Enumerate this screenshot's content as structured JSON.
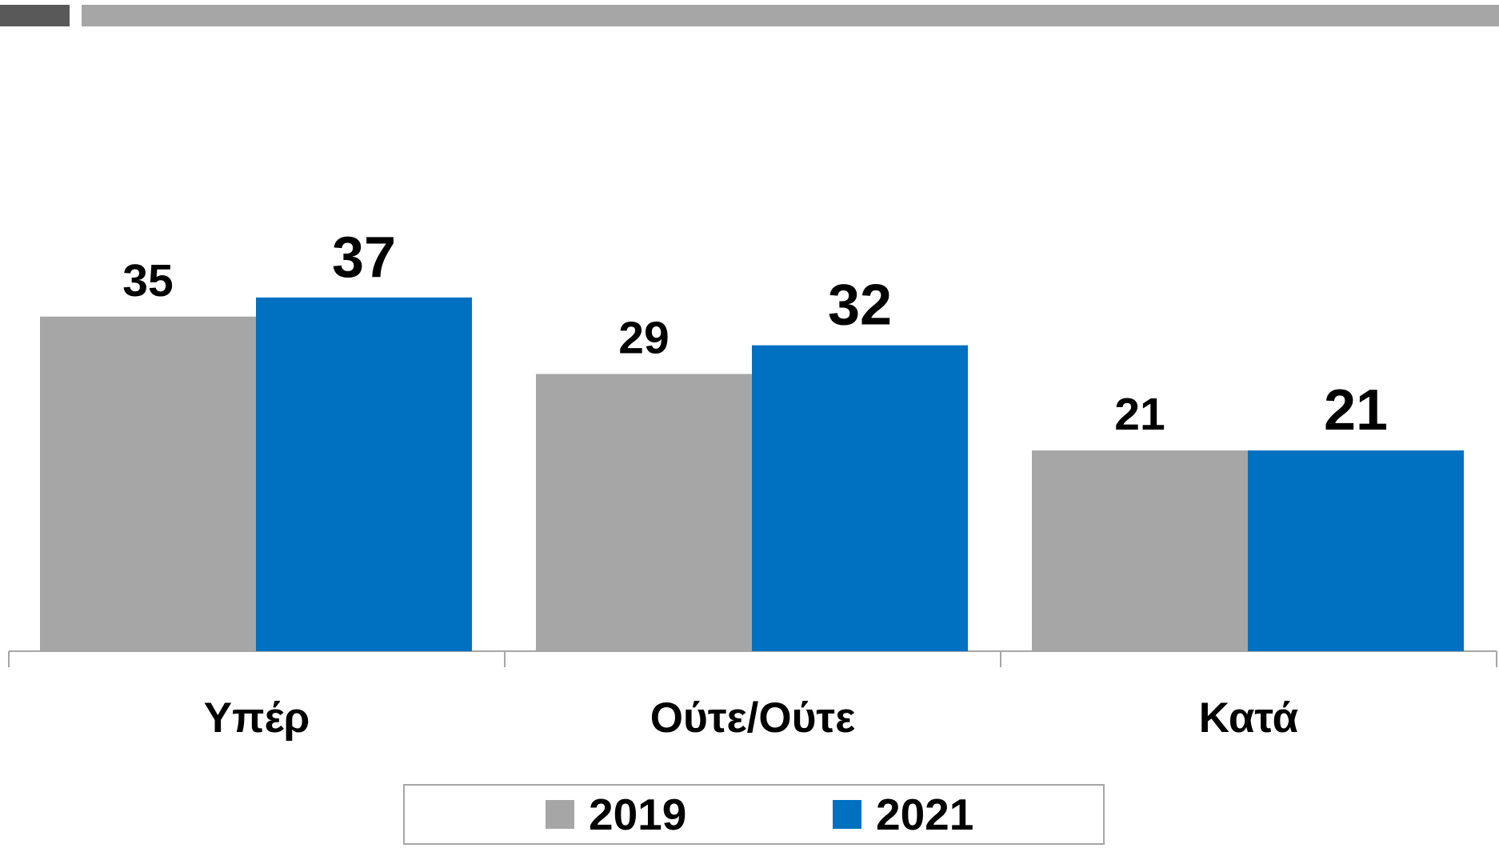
{
  "chart_data": {
    "type": "bar",
    "categories": [
      "Υπέρ",
      "Ούτε/Ούτε",
      "Κατά"
    ],
    "series": [
      {
        "name": "2019",
        "color": "#a6a6a6",
        "values": [
          35,
          29,
          21
        ]
      },
      {
        "name": "2021",
        "color": "#0070c0",
        "values": [
          37,
          32,
          21
        ]
      }
    ],
    "legend": "bottom"
  }
}
